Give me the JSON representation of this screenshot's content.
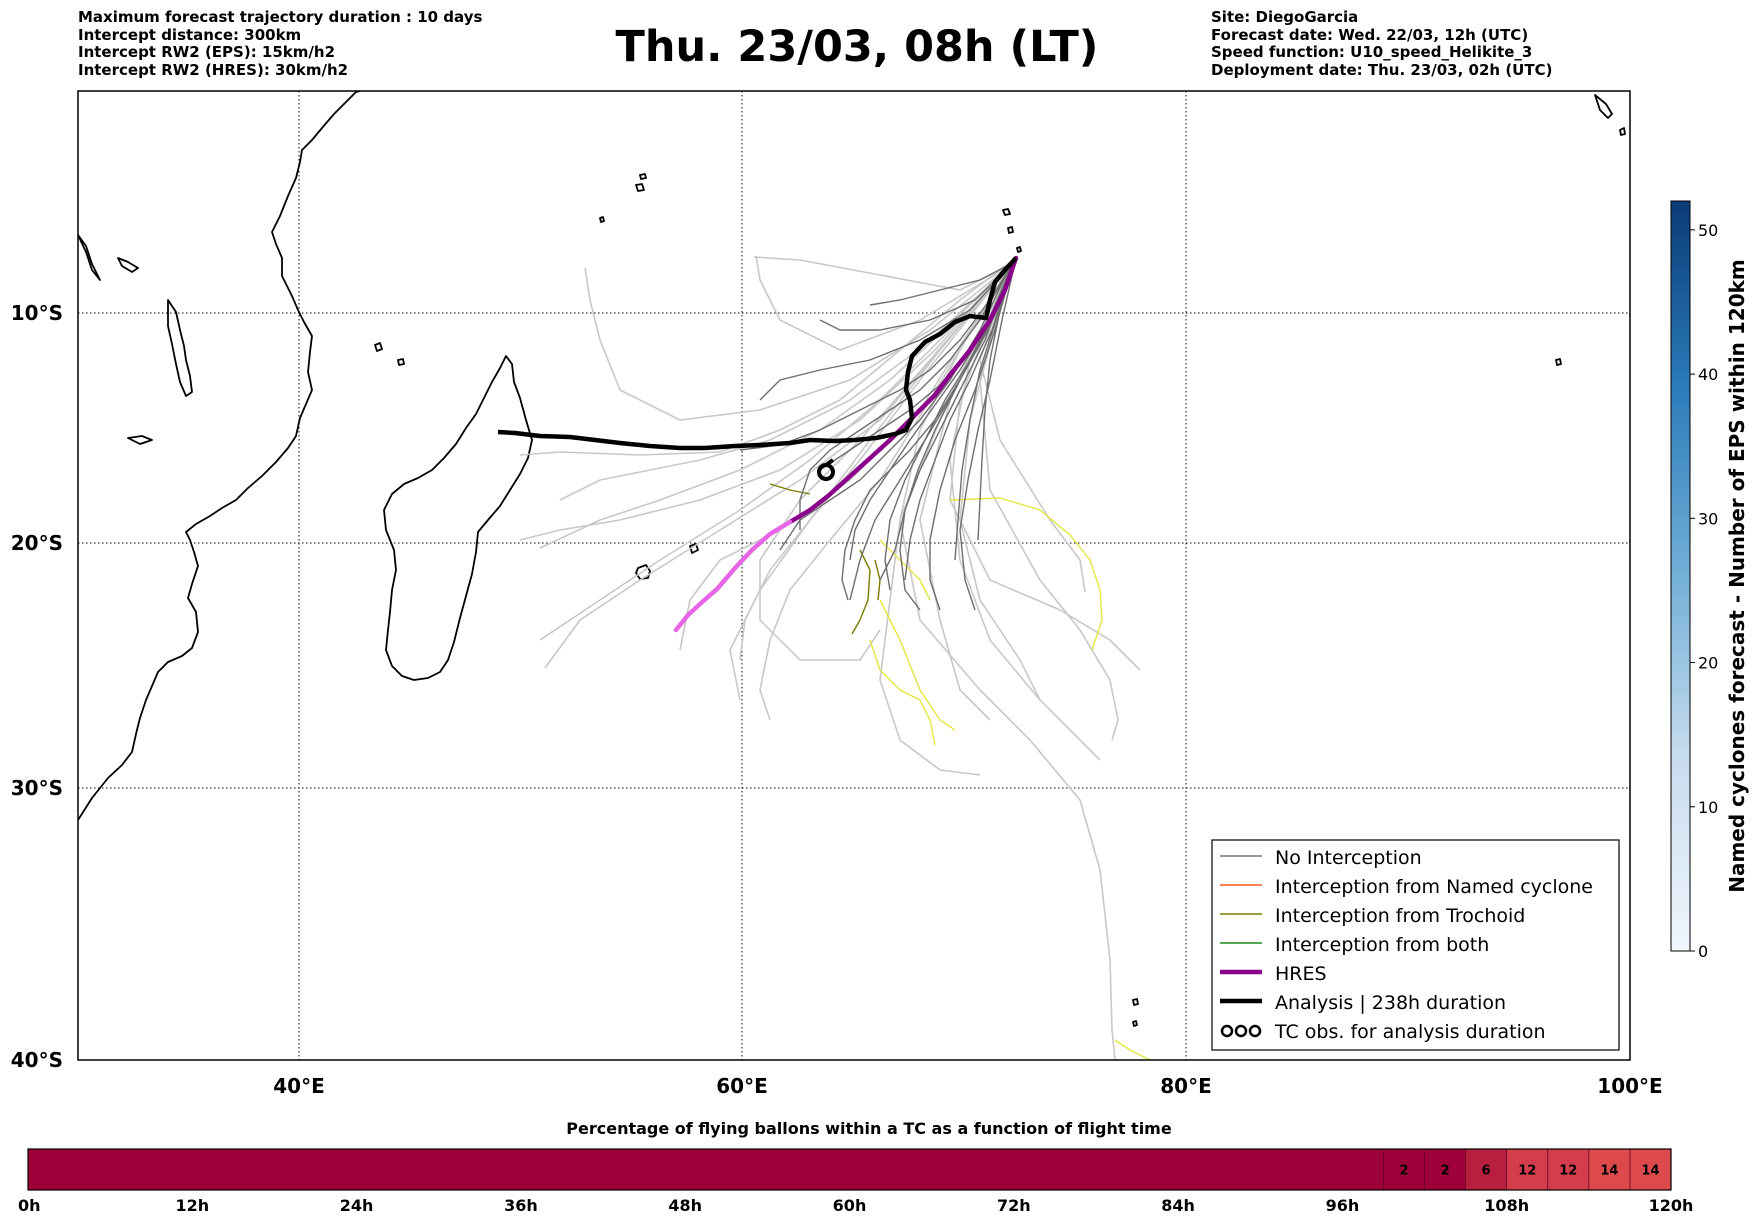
{
  "header": {
    "left": [
      "Maximum forecast trajectory duration : 10 days",
      "Intercept distance: 300km",
      "Intercept RW2 (EPS):  15km/h2",
      "Intercept RW2 (HRES): 30km/h2"
    ],
    "title": "Thu. 23/03, 08h (LT)",
    "right": [
      "Site: DiegoGarcia",
      "Forecast date: Wed. 22/03, 12h (UTC)",
      "Speed function: U10_speed_Helikite_3",
      "Deployment date: Thu. 23/03, 02h (UTC)"
    ]
  },
  "map": {
    "lon_range": [
      30,
      100
    ],
    "lat_range": [
      -40,
      0
    ],
    "lat_labels": [
      "10°S",
      "20°S",
      "30°S",
      "40°S"
    ],
    "lon_labels": [
      "40°E",
      "60°E",
      "80°E",
      "100°E"
    ],
    "tc_marker": "cyclone-symbol"
  },
  "legend": {
    "items": [
      {
        "label": "No Interception",
        "color": "#777777"
      },
      {
        "label": "Interception from Named cyclone",
        "color": "#ff5a1f"
      },
      {
        "label": "Interception from Trochoid",
        "color": "#7a7a00"
      },
      {
        "label": "Interception from both",
        "color": "#1a8a1a"
      },
      {
        "label": "HRES",
        "color": "#8b008b"
      },
      {
        "label": "Analysis | 238h duration",
        "color": "#000000"
      },
      {
        "label": "TC obs. for analysis duration",
        "color": "#000000"
      }
    ]
  },
  "colorbar": {
    "title": "Named cyclones forecast - Number of EPS within 120km",
    "ticks": [
      "0",
      "10",
      "20",
      "30",
      "40",
      "50"
    ],
    "range": [
      0,
      52
    ]
  },
  "bottom_bar": {
    "title": "Percentage of flying ballons within a TC as a function of flight time",
    "ticks": [
      "0h",
      "12h",
      "24h",
      "36h",
      "48h",
      "60h",
      "72h",
      "84h",
      "96h",
      "108h",
      "120h"
    ],
    "cells": [
      {
        "start_h": 0,
        "end_h": 99,
        "label": "",
        "color": "#9e003a"
      },
      {
        "start_h": 99,
        "end_h": 102,
        "label": "2",
        "color": "#9e003a"
      },
      {
        "start_h": 102,
        "end_h": 105,
        "label": "2",
        "color": "#9e003a"
      },
      {
        "start_h": 105,
        "end_h": 108,
        "label": "6",
        "color": "#b81e3e"
      },
      {
        "start_h": 108,
        "end_h": 111,
        "label": "12",
        "color": "#d43d4c"
      },
      {
        "start_h": 111,
        "end_h": 114,
        "label": "12",
        "color": "#d43d4c"
      },
      {
        "start_h": 114,
        "end_h": 117,
        "label": "14",
        "color": "#dc4a4c"
      },
      {
        "start_h": 117,
        "end_h": 120,
        "label": "14",
        "color": "#dc4a4c"
      }
    ]
  }
}
